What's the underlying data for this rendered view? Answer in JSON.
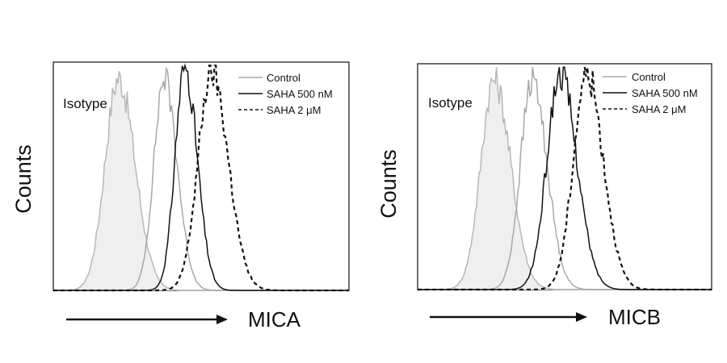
{
  "chart_data": [
    {
      "type": "line",
      "title": "",
      "xlabel": "MICA",
      "ylabel": "Counts",
      "isotype_label": "Isotype",
      "legend_placement": "top-right",
      "grid": false,
      "x_scale": "log",
      "xlim": [
        0,
        1
      ],
      "ylim": [
        0,
        1
      ],
      "series": [
        {
          "name": "Isotype",
          "color": "#b8b8b8",
          "fill": "#efefef",
          "style": "solid",
          "center": 0.22,
          "width": 0.045,
          "peak": 0.93
        },
        {
          "name": "Control",
          "color": "#a8a8a8",
          "style": "solid",
          "center": 0.375,
          "width": 0.035,
          "peak": 0.93
        },
        {
          "name": "SAHA 500 nM",
          "color": "#111111",
          "style": "solid",
          "center": 0.445,
          "width": 0.033,
          "peak": 0.98
        },
        {
          "name": "SAHA 2 μM",
          "color": "#111111",
          "style": "dashed",
          "center": 0.535,
          "width": 0.045,
          "peak": 0.96
        }
      ],
      "legend": [
        "Control",
        "SAHA 500 nM",
        "SAHA 2 μM"
      ]
    },
    {
      "type": "line",
      "title": "",
      "xlabel": "MICB",
      "ylabel": "Counts",
      "isotype_label": "Isotype",
      "legend_placement": "top-right",
      "grid": false,
      "x_scale": "log",
      "xlim": [
        0,
        1
      ],
      "ylim": [
        0,
        1
      ],
      "series": [
        {
          "name": "Isotype",
          "color": "#b8b8b8",
          "fill": "#efefef",
          "style": "solid",
          "center": 0.26,
          "width": 0.045,
          "peak": 0.93
        },
        {
          "name": "Control",
          "color": "#a8a8a8",
          "style": "solid",
          "center": 0.39,
          "width": 0.04,
          "peak": 0.93
        },
        {
          "name": "SAHA 500 nM",
          "color": "#111111",
          "style": "solid",
          "center": 0.485,
          "width": 0.045,
          "peak": 0.96
        },
        {
          "name": "SAHA 2 μM",
          "color": "#111111",
          "style": "dashed",
          "center": 0.575,
          "width": 0.045,
          "peak": 0.96
        }
      ],
      "legend": [
        "Control",
        "SAHA 500 nM",
        "SAHA 2 μM"
      ]
    }
  ]
}
